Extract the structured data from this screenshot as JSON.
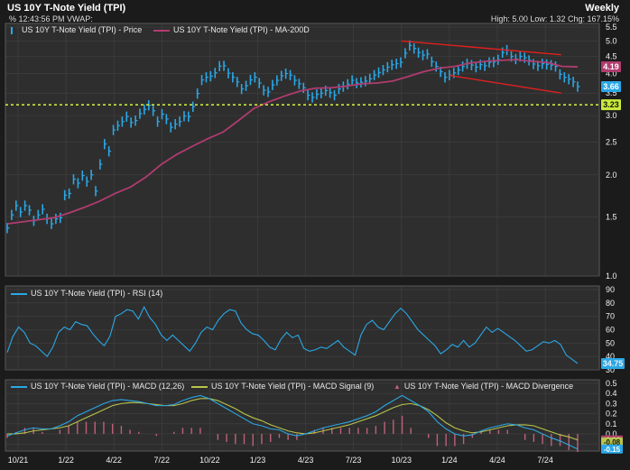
{
  "header": {
    "title": "US 10Y T-Note Yield (TPI)",
    "subtitle": "% 12:43:56 PM VWAP:",
    "interval": "Weekly",
    "stats": "High: 5.00 Low: 1.32 Chg: 167.15%"
  },
  "colors": {
    "background": "#1b1b1b",
    "panel": "#2e2e2e",
    "grid": "#424242",
    "price": "#2aa7e6",
    "ma": "#b03c6e",
    "channel": "#e0201e",
    "hline": "#c8ea3c",
    "rsi": "#2aa7e6",
    "macd": "#2aa7e6",
    "signal": "#b8c44c",
    "divergence": "#c0607a"
  },
  "chart_data": [
    {
      "type": "line",
      "panel": "price",
      "title": "US 10Y T-Note Yield (TPI)",
      "x_ticks": [
        "10/21",
        "1/22",
        "4/22",
        "7/22",
        "10/22",
        "1/23",
        "4/23",
        "7/23",
        "10/23",
        "1/24",
        "4/24",
        "7/24"
      ],
      "y_ticks": [
        "1.0",
        "1.5",
        "2.0",
        "2.5",
        "3.0",
        "3.5",
        "4.0",
        "4.5",
        "5.0",
        "5.5"
      ],
      "y_scale": "log",
      "ylim": [
        1.0,
        5.5
      ],
      "grid": true,
      "legend_position": "top-left",
      "series": [
        {
          "name": "US 10Y T-Note Yield (TPI) - Price",
          "values": [
            1.39,
            1.52,
            1.62,
            1.55,
            1.62,
            1.57,
            1.46,
            1.52,
            1.58,
            1.48,
            1.43,
            1.48,
            1.49,
            1.74,
            1.76,
            1.94,
            1.89,
            1.99,
            1.91,
            2.0,
            1.79,
            2.15,
            2.47,
            2.35,
            2.72,
            2.8,
            2.88,
            2.98,
            2.86,
            2.9,
            3.04,
            3.13,
            3.22,
            3.1,
            2.88,
            3.03,
            2.93,
            2.77,
            2.83,
            2.88,
            2.99,
            2.98,
            3.19,
            3.49,
            3.83,
            3.9,
            3.93,
            4.02,
            4.21,
            4.22,
            4.01,
            3.9,
            3.78,
            3.6,
            3.68,
            3.83,
            3.9,
            3.75,
            3.57,
            3.53,
            3.7,
            3.82,
            3.94,
            4.0,
            3.96,
            3.82,
            3.73,
            3.63,
            3.45,
            3.4,
            3.47,
            3.5,
            3.56,
            3.51,
            3.45,
            3.6,
            3.66,
            3.72,
            3.82,
            3.75,
            3.77,
            3.8,
            3.86,
            3.96,
            4.03,
            4.1,
            4.18,
            4.25,
            4.28,
            4.32,
            4.6,
            4.85,
            4.75,
            4.62,
            4.54,
            4.57,
            4.34,
            4.2,
            4.05,
            3.9,
            3.96,
            4.02,
            4.1,
            4.2,
            4.28,
            4.24,
            4.18,
            4.25,
            4.22,
            4.32,
            4.33,
            4.4,
            4.62,
            4.7,
            4.5,
            4.42,
            4.5,
            4.46,
            4.38,
            4.27,
            4.22,
            4.28,
            4.26,
            4.24,
            4.2,
            3.98,
            3.9,
            3.85,
            3.78,
            3.66
          ]
        },
        {
          "name": "US 10Y T-Note Yield (TPI) - MA-200D",
          "values": [
            1.43,
            1.45,
            1.47,
            1.49,
            1.54,
            1.6,
            1.67,
            1.76,
            1.84,
            1.97,
            2.15,
            2.3,
            2.43,
            2.56,
            2.68,
            2.9,
            3.15,
            3.3,
            3.43,
            3.55,
            3.62,
            3.63,
            3.67,
            3.73,
            3.75,
            3.8,
            3.92,
            4.05,
            4.15,
            4.2,
            4.3,
            4.35,
            4.38,
            4.4,
            4.35,
            4.32,
            4.2,
            4.19
          ]
        }
      ],
      "reference_line": 3.23,
      "channel_lines": [
        {
          "from": [
            "10/23",
            5.0
          ],
          "to": [
            "8/24",
            4.55
          ]
        },
        {
          "from": [
            "1/24",
            3.95
          ],
          "to": [
            "8/24",
            3.5
          ]
        }
      ],
      "price_labels": [
        "4.19",
        "3.66",
        "3.23"
      ]
    },
    {
      "type": "line",
      "panel": "rsi",
      "series": [
        {
          "name": "US 10Y T-Note Yield (TPI) - RSI (14)",
          "values": [
            43,
            55,
            62,
            58,
            50,
            48,
            44,
            40,
            47,
            58,
            62,
            60,
            66,
            64,
            63,
            57,
            52,
            48,
            55,
            70,
            72,
            75,
            74,
            68,
            77,
            69,
            64,
            56,
            52,
            56,
            52,
            48,
            44,
            50,
            58,
            62,
            60,
            67,
            72,
            75,
            74,
            65,
            60,
            57,
            56,
            52,
            47,
            45,
            53,
            58,
            54,
            56,
            46,
            44,
            45,
            47,
            46,
            49,
            52,
            47,
            44,
            41,
            56,
            64,
            67,
            62,
            60,
            66,
            72,
            76,
            72,
            66,
            60,
            56,
            52,
            48,
            42,
            45,
            49,
            47,
            52,
            47,
            50,
            56,
            62,
            58,
            61,
            58,
            55,
            52,
            48,
            44,
            45,
            48,
            51,
            50,
            52,
            49,
            41,
            38,
            34.75
          ]
        }
      ],
      "y_ticks": [
        "30",
        "40",
        "50",
        "60",
        "70",
        "80",
        "90"
      ],
      "ylim": [
        30,
        90
      ],
      "last_value_label": "34.75"
    },
    {
      "type": "line",
      "panel": "macd",
      "series": [
        {
          "name": "US 10Y T-Note Yield (TPI) - MACD (12,26)",
          "values": [
            -0.02,
            0.01,
            0.04,
            0.06,
            0.05,
            0.05,
            0.08,
            0.12,
            0.18,
            0.22,
            0.26,
            0.3,
            0.33,
            0.34,
            0.33,
            0.32,
            0.3,
            0.28,
            0.28,
            0.29,
            0.33,
            0.36,
            0.38,
            0.35,
            0.3,
            0.25,
            0.2,
            0.15,
            0.1,
            0.08,
            0.05,
            0.04,
            0.0,
            -0.02,
            0.0,
            0.03,
            0.06,
            0.08,
            0.1,
            0.12,
            0.15,
            0.18,
            0.22,
            0.28,
            0.33,
            0.38,
            0.33,
            0.28,
            0.22,
            0.12,
            0.05,
            0.0,
            -0.02,
            -0.01,
            0.03,
            0.06,
            0.08,
            0.1,
            0.09,
            0.06,
            0.04,
            0.0,
            -0.04,
            -0.07,
            -0.11,
            -0.15
          ]
        },
        {
          "name": "US 10Y T-Note Yield (TPI) - MACD Signal (9)",
          "values": [
            0.0,
            0.0,
            0.01,
            0.03,
            0.04,
            0.05,
            0.06,
            0.08,
            0.12,
            0.16,
            0.2,
            0.24,
            0.28,
            0.3,
            0.31,
            0.31,
            0.3,
            0.29,
            0.28,
            0.28,
            0.3,
            0.33,
            0.35,
            0.35,
            0.33,
            0.29,
            0.25,
            0.2,
            0.16,
            0.13,
            0.09,
            0.06,
            0.03,
            0.01,
            0.0,
            0.01,
            0.03,
            0.05,
            0.07,
            0.09,
            0.12,
            0.15,
            0.18,
            0.22,
            0.26,
            0.29,
            0.3,
            0.28,
            0.24,
            0.18,
            0.11,
            0.06,
            0.03,
            0.01,
            0.02,
            0.04,
            0.06,
            0.08,
            0.09,
            0.09,
            0.08,
            0.05,
            0.02,
            -0.01,
            -0.03,
            -0.06
          ]
        }
      ],
      "divergence_name": "US 10Y T-Note Yield (TPI) - MACD Divergence",
      "y_ticks": [
        "-0.1",
        "0.0",
        "0.1",
        "0.2",
        "0.3",
        "0.4",
        "0.5"
      ],
      "ylim": [
        -0.17,
        0.5
      ],
      "value_labels": [
        "-0.06",
        "-0.08",
        "-0.15"
      ]
    }
  ]
}
